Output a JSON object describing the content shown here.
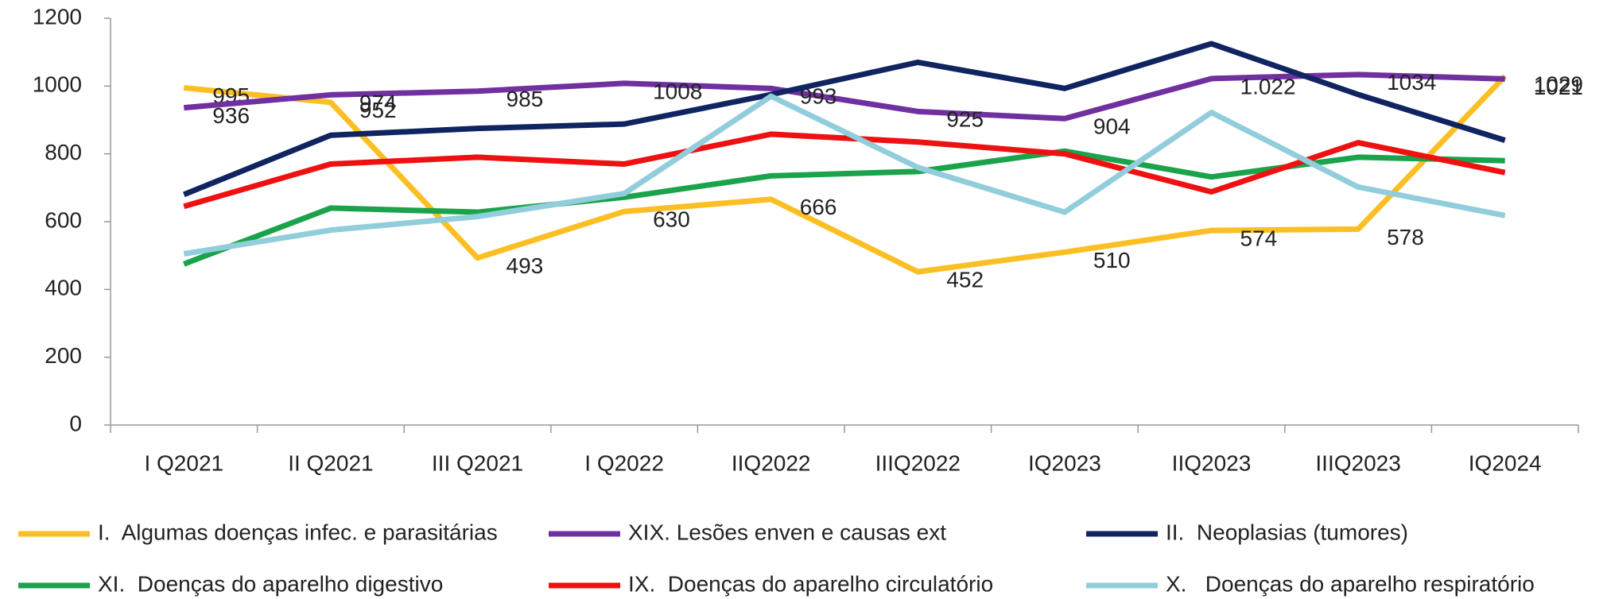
{
  "chart_data": {
    "type": "line",
    "categories": [
      "I Q2021",
      "II Q2021",
      "III Q2021",
      "I Q2022",
      "IIQ2022",
      "IIIQ2022",
      "IQ2023",
      "IIQ2023",
      "IIIQ2023",
      "IQ2024"
    ],
    "ylim": [
      0,
      1200
    ],
    "yticks": [
      0,
      200,
      400,
      600,
      800,
      1000,
      1200
    ],
    "legend": "bottom",
    "series": [
      {
        "name": "I.  Algumas doenças infec. e parasitárias",
        "color": "#fbbf24",
        "values": [
          995,
          952,
          493,
          630,
          666,
          452,
          510,
          574,
          578,
          1029
        ],
        "labels": true
      },
      {
        "name": "XIX. Lesões enven e causas ext",
        "color": "#7030a0",
        "values": [
          936,
          974,
          985,
          1008,
          993,
          925,
          904,
          1022,
          1034,
          1021
        ],
        "value_labels": [
          "936",
          "974",
          "985",
          "1008",
          "993",
          "925",
          "904",
          "1.022",
          "1034",
          "1021"
        ],
        "labels": true
      },
      {
        "name": "II.  Neoplasias (tumores)",
        "color": "#0f2460",
        "values": [
          680,
          855,
          875,
          888,
          975,
          1070,
          993,
          1125,
          975,
          840
        ]
      },
      {
        "name": "XI.  Doenças do aparelho digestivo",
        "color": "#1aa34a",
        "values": [
          475,
          640,
          628,
          672,
          735,
          748,
          808,
          732,
          790,
          780
        ]
      },
      {
        "name": "IX.  Doenças do aparelho circulatório",
        "color": "#ee1111",
        "values": [
          645,
          770,
          790,
          770,
          858,
          835,
          800,
          688,
          833,
          745
        ]
      },
      {
        "name": "X.   Doenças do aparelho respiratório",
        "color": "#92cddc",
        "values": [
          505,
          575,
          615,
          683,
          970,
          760,
          628,
          922,
          702,
          618
        ]
      }
    ]
  }
}
